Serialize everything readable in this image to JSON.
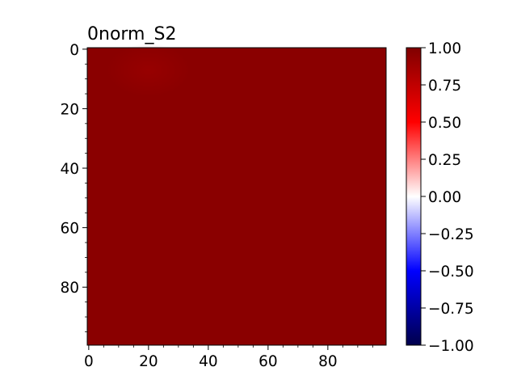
{
  "chart_data": {
    "type": "heatmap",
    "title": "0norm_S2",
    "xlabel": "",
    "ylabel": "",
    "x_range": [
      0,
      99
    ],
    "y_range": [
      0,
      99
    ],
    "y_inverted": true,
    "x_ticks": [
      "0",
      "20",
      "40",
      "60",
      "80"
    ],
    "y_ticks": [
      "0",
      "20",
      "40",
      "60",
      "80"
    ],
    "grid": false,
    "values_summary": {
      "base_value": 0.98,
      "hotspot": {
        "x": 20,
        "y": 7,
        "value": 0.93
      }
    },
    "colorbar": {
      "colormap": "seismic",
      "vmin": -1.0,
      "vmax": 1.0,
      "ticks": [
        "1.00",
        "0.75",
        "0.50",
        "0.25",
        "0.00",
        "−0.25",
        "−0.50",
        "−0.75",
        "−1.00"
      ]
    }
  },
  "colors": {
    "heatmap_base": "#8a0000",
    "cmap_top": "#800000",
    "cmap_upper": "#ff0000",
    "cmap_mid": "#ffffff",
    "cmap_lower": "#0000ff",
    "cmap_bottom": "#00004c"
  }
}
